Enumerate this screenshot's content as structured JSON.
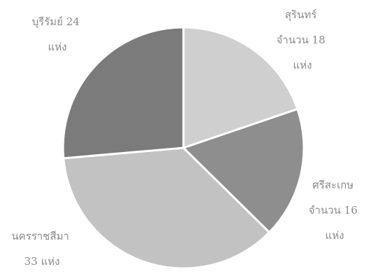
{
  "chart_data": {
    "type": "pie",
    "title": "",
    "slices": [
      {
        "name": "สุรินทร์",
        "value": 18,
        "color": "#cfcfcf",
        "label_lines": [
          "สุรินทร์",
          "จำนวน 18",
          "แห่ง"
        ]
      },
      {
        "name": "ศรีสะเกษ",
        "value": 16,
        "color": "#8e8e8e",
        "label_lines": [
          "ศรีสะเกษ",
          "จำนวน 16",
          "แห่ง"
        ]
      },
      {
        "name": "นครราชสีมา",
        "value": 33,
        "color": "#c2c2c2",
        "label_lines": [
          "นครราชสีมา",
          "33 แห่ง"
        ]
      },
      {
        "name": "บุรีรัมย์",
        "value": 24,
        "color": "#7b7b7b",
        "label_lines": [
          "บุรีรัมย์ 24",
          "แห่ง"
        ]
      }
    ],
    "start_angle_deg": 0,
    "direction": "clockwise",
    "legend": "none"
  }
}
